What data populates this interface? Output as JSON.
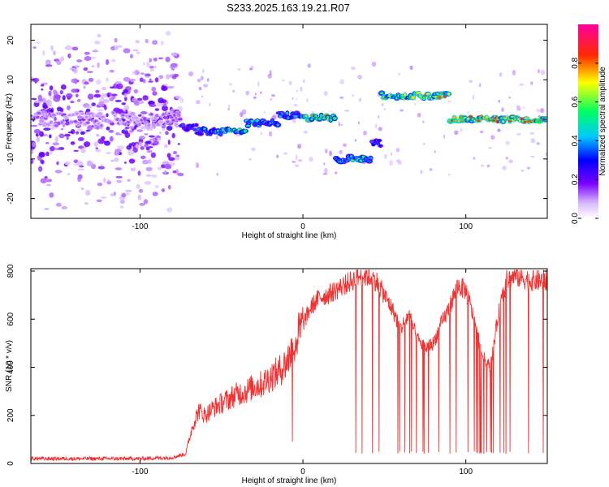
{
  "title": "S233.2025.163.19.21.R07",
  "chart_data": [
    {
      "type": "heatmap",
      "xlabel": "Height of straight line (km)",
      "ylabel": "Frequency (Hz)",
      "xlim": [
        -167,
        150
      ],
      "ylim": [
        -25,
        24
      ],
      "xticks": [
        -100,
        0,
        100
      ],
      "yticks": [
        -20,
        -10,
        0,
        10,
        20
      ],
      "colorbar": {
        "label": "Normalized spectral amplitude",
        "range": [
          0,
          1
        ],
        "ticks": [
          0.0,
          0.2,
          0.4,
          0.6,
          0.8
        ],
        "colormap": "rainbow (white-violet-blue-cyan-green-yellow-red-magenta)"
      },
      "ridge": [
        {
          "x": [
            -165,
            -75
          ],
          "freq": 0,
          "amplitude": 0.15,
          "note": "diffuse scattered noise"
        },
        {
          "x": [
            -75,
            -65
          ],
          "freq": -2,
          "amplitude": 0.35
        },
        {
          "x": [
            -65,
            -50
          ],
          "freq": -3,
          "amplitude": 0.5
        },
        {
          "x": [
            -50,
            -35
          ],
          "freq": -3,
          "amplitude": 0.7
        },
        {
          "x": [
            -35,
            -15
          ],
          "freq": -1,
          "amplitude": 0.5
        },
        {
          "x": [
            -15,
            0
          ],
          "freq": 1,
          "amplitude": 0.5
        },
        {
          "x": [
            0,
            20
          ],
          "freq": 0.5,
          "amplitude": 0.8
        },
        {
          "x": [
            20,
            42
          ],
          "freq": -10,
          "amplitude": 0.6
        },
        {
          "x": [
            42,
            48
          ],
          "freq": -6,
          "amplitude": 0.4
        },
        {
          "x": [
            48,
            90
          ],
          "freq": 6,
          "amplitude": 0.8
        },
        {
          "x": [
            90,
            150
          ],
          "freq": 0,
          "amplitude": 0.9
        }
      ]
    },
    {
      "type": "line",
      "xlabel": "Height of straight line (km)",
      "ylabel": "SNR (10 * v/v)",
      "xlim": [
        -167,
        150
      ],
      "ylim": [
        0,
        810
      ],
      "xticks": [
        -100,
        0,
        100
      ],
      "yticks": [
        0,
        200,
        400,
        600,
        800
      ],
      "color": "#ee3333",
      "series": [
        {
          "x": [
            -167,
            -100,
            -80,
            -72,
            -68,
            -64,
            -60,
            -55,
            -50,
            -45,
            -40,
            -35,
            -30,
            -25,
            -20,
            -15,
            -10,
            -5,
            0,
            5,
            10,
            15,
            20,
            25,
            30,
            35,
            40,
            45,
            50,
            55,
            60,
            65,
            70,
            75,
            80,
            85,
            90,
            95,
            100,
            105,
            110,
            115,
            120,
            125,
            130,
            135,
            140,
            145,
            150
          ],
          "y": [
            20,
            20,
            25,
            40,
            150,
            220,
            200,
            230,
            250,
            270,
            290,
            300,
            320,
            330,
            360,
            380,
            420,
            500,
            580,
            650,
            690,
            700,
            720,
            740,
            760,
            780,
            780,
            760,
            700,
            640,
            560,
            620,
            520,
            480,
            500,
            580,
            650,
            740,
            720,
            600,
            450,
            400,
            620,
            760,
            780,
            770,
            760,
            760,
            760
          ]
        }
      ],
      "dropouts": {
        "x_start": 25,
        "x_end": 150,
        "floor": 40
      }
    }
  ]
}
